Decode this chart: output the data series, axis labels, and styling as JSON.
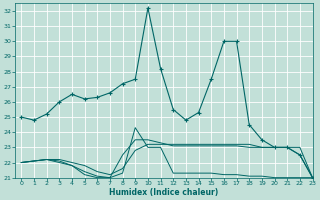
{
  "xlabel": "Humidex (Indice chaleur)",
  "bg_color": "#c2e0d8",
  "grid_color": "#ffffff",
  "line_color": "#006666",
  "xlim": [
    -0.5,
    23
  ],
  "ylim": [
    21,
    32.5
  ],
  "yticks": [
    21,
    22,
    23,
    24,
    25,
    26,
    27,
    28,
    29,
    30,
    31,
    32
  ],
  "xticks": [
    0,
    1,
    2,
    3,
    4,
    5,
    6,
    7,
    8,
    9,
    10,
    11,
    12,
    13,
    14,
    15,
    16,
    17,
    18,
    19,
    20,
    21,
    22,
    23
  ],
  "series": [
    {
      "x": [
        0,
        1,
        2,
        3,
        4,
        5,
        6,
        7,
        8,
        9,
        10,
        11,
        12,
        13,
        14,
        15,
        16,
        17,
        18,
        19,
        20,
        21,
        22,
        23
      ],
      "y": [
        25.0,
        24.8,
        25.2,
        26.0,
        26.5,
        26.2,
        26.3,
        26.6,
        27.2,
        27.5,
        32.2,
        28.2,
        25.5,
        24.8,
        25.3,
        27.5,
        30.0,
        30.0,
        24.5,
        23.5,
        23.0,
        23.0,
        22.5,
        21.0
      ],
      "marker": true
    },
    {
      "x": [
        0,
        1,
        2,
        3,
        4,
        5,
        6,
        7,
        8,
        9,
        10,
        11,
        12,
        13,
        14,
        15,
        16,
        17,
        18,
        19,
        20,
        21,
        22,
        23
      ],
      "y": [
        22.0,
        22.1,
        22.2,
        22.1,
        21.8,
        21.4,
        21.1,
        21.0,
        21.3,
        24.3,
        23.0,
        23.0,
        21.3,
        21.3,
        21.3,
        21.3,
        21.2,
        21.2,
        21.1,
        21.1,
        21.0,
        21.0,
        21.0,
        21.0
      ],
      "marker": false
    },
    {
      "x": [
        0,
        1,
        2,
        3,
        4,
        5,
        6,
        7,
        8,
        9,
        10,
        11,
        12,
        13,
        14,
        15,
        16,
        17,
        18,
        19,
        20,
        21,
        22,
        23
      ],
      "y": [
        22.0,
        22.1,
        22.2,
        22.2,
        22.0,
        21.8,
        21.4,
        21.2,
        21.6,
        22.8,
        23.2,
        23.2,
        23.2,
        23.2,
        23.2,
        23.2,
        23.2,
        23.2,
        23.2,
        23.0,
        23.0,
        23.0,
        22.5,
        21.0
      ],
      "marker": false
    },
    {
      "x": [
        0,
        1,
        2,
        3,
        4,
        5,
        6,
        7,
        8,
        9,
        10,
        11,
        12,
        13,
        14,
        15,
        16,
        17,
        18,
        19,
        20,
        21,
        22,
        23
      ],
      "y": [
        22.0,
        22.1,
        22.2,
        22.0,
        21.8,
        21.2,
        21.0,
        21.0,
        22.5,
        23.5,
        23.5,
        23.3,
        23.1,
        23.1,
        23.1,
        23.1,
        23.1,
        23.1,
        23.0,
        23.0,
        23.0,
        23.0,
        23.0,
        21.0
      ],
      "marker": false
    }
  ]
}
